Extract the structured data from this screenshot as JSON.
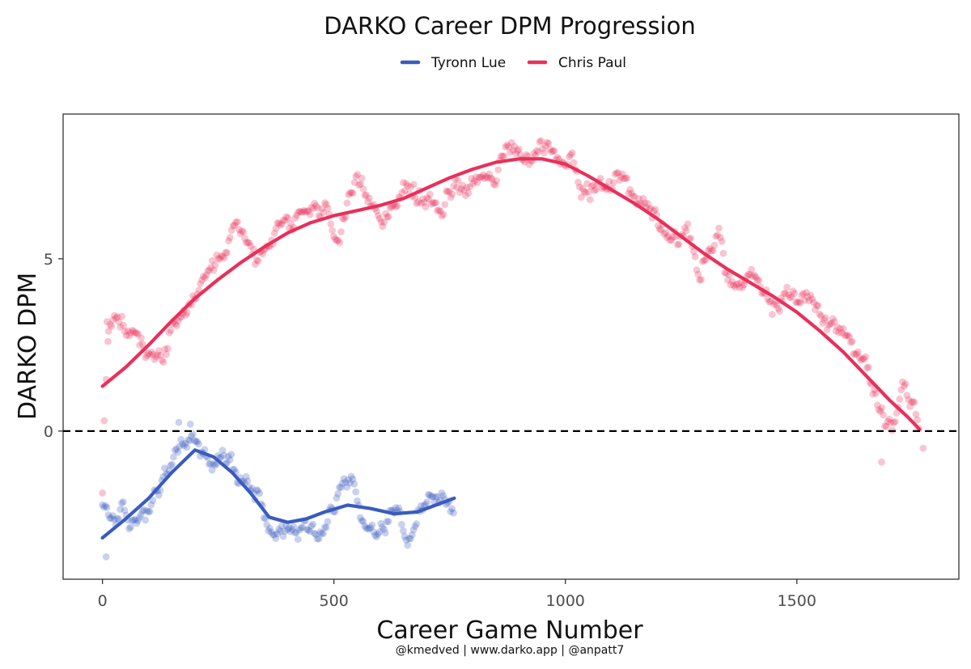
{
  "chart_data": {
    "type": "scatter",
    "title": "DARKO Career DPM Progression",
    "xlabel": "Career Game Number",
    "ylabel": "DARKO DPM",
    "caption": "@kmedved | www.darko.app | @anpatt7",
    "xlim": [
      -85,
      1850
    ],
    "ylim": [
      -4.3,
      9.2
    ],
    "xticks": [
      0,
      500,
      1000,
      1500
    ],
    "yticks": [
      0,
      5
    ],
    "reference_line": {
      "y": 0,
      "style": "dashed",
      "color": "#000000"
    },
    "grid": false,
    "legend_position": "top",
    "series": [
      {
        "name": "Tyronn Lue",
        "color": "#3A5BBF",
        "smooth": [
          [
            0,
            -3.1
          ],
          [
            50,
            -2.55
          ],
          [
            100,
            -1.95
          ],
          [
            150,
            -1.2
          ],
          [
            200,
            -0.55
          ],
          [
            240,
            -0.75
          ],
          [
            280,
            -1.2
          ],
          [
            320,
            -1.8
          ],
          [
            360,
            -2.5
          ],
          [
            400,
            -2.65
          ],
          [
            440,
            -2.55
          ],
          [
            480,
            -2.35
          ],
          [
            530,
            -2.15
          ],
          [
            580,
            -2.25
          ],
          [
            630,
            -2.4
          ],
          [
            680,
            -2.35
          ],
          [
            760,
            -1.95
          ]
        ],
        "anchors": [
          [
            0,
            -2.3
          ],
          [
            20,
            -2.5
          ],
          [
            40,
            -2.35
          ],
          [
            60,
            -2.9
          ],
          [
            80,
            -2.5
          ],
          [
            100,
            -2.1
          ],
          [
            120,
            -1.6
          ],
          [
            140,
            -1.3
          ],
          [
            160,
            -0.6
          ],
          [
            180,
            -0.35
          ],
          [
            200,
            -0.2
          ],
          [
            220,
            -0.7
          ],
          [
            240,
            -0.8
          ],
          [
            260,
            -0.7
          ],
          [
            280,
            -1.0
          ],
          [
            300,
            -1.4
          ],
          [
            320,
            -1.35
          ],
          [
            340,
            -1.8
          ],
          [
            360,
            -2.6
          ],
          [
            380,
            -2.7
          ],
          [
            400,
            -2.85
          ],
          [
            420,
            -3.0
          ],
          [
            440,
            -2.5
          ],
          [
            460,
            -2.7
          ],
          [
            480,
            -2.55
          ],
          [
            500,
            -2.2
          ],
          [
            520,
            -1.3
          ],
          [
            540,
            -1.6
          ],
          [
            560,
            -2.5
          ],
          [
            580,
            -2.8
          ],
          [
            600,
            -2.65
          ],
          [
            620,
            -2.55
          ],
          [
            640,
            -2.2
          ],
          [
            660,
            -2.85
          ],
          [
            680,
            -2.45
          ],
          [
            700,
            -1.85
          ],
          [
            720,
            -2.2
          ],
          [
            740,
            -1.95
          ],
          [
            760,
            -2.2
          ]
        ],
        "outliers": [
          [
            8,
            -3.65
          ],
          [
            165,
            0.25
          ],
          [
            190,
            0.2
          ]
        ]
      },
      {
        "name": "Chris Paul",
        "color": "#E8305A",
        "smooth": [
          [
            0,
            1.3
          ],
          [
            50,
            1.85
          ],
          [
            100,
            2.5
          ],
          [
            150,
            3.2
          ],
          [
            200,
            3.85
          ],
          [
            250,
            4.4
          ],
          [
            300,
            4.9
          ],
          [
            350,
            5.35
          ],
          [
            400,
            5.75
          ],
          [
            450,
            6.05
          ],
          [
            500,
            6.25
          ],
          [
            550,
            6.4
          ],
          [
            600,
            6.55
          ],
          [
            650,
            6.75
          ],
          [
            700,
            7.05
          ],
          [
            750,
            7.35
          ],
          [
            800,
            7.6
          ],
          [
            850,
            7.8
          ],
          [
            900,
            7.9
          ],
          [
            950,
            7.9
          ],
          [
            1000,
            7.75
          ],
          [
            1050,
            7.4
          ],
          [
            1100,
            7.0
          ],
          [
            1150,
            6.6
          ],
          [
            1200,
            6.15
          ],
          [
            1250,
            5.65
          ],
          [
            1300,
            5.15
          ],
          [
            1350,
            4.7
          ],
          [
            1400,
            4.3
          ],
          [
            1450,
            3.9
          ],
          [
            1500,
            3.45
          ],
          [
            1550,
            2.9
          ],
          [
            1600,
            2.3
          ],
          [
            1650,
            1.6
          ],
          [
            1700,
            0.9
          ],
          [
            1740,
            0.4
          ],
          [
            1765,
            0.05
          ]
        ],
        "anchors": [
          [
            10,
            2.9
          ],
          [
            30,
            3.0
          ],
          [
            50,
            2.8
          ],
          [
            70,
            2.8
          ],
          [
            90,
            2.4
          ],
          [
            110,
            2.05
          ],
          [
            130,
            2.3
          ],
          [
            150,
            2.8
          ],
          [
            170,
            3.0
          ],
          [
            190,
            3.7
          ],
          [
            210,
            4.1
          ],
          [
            230,
            4.2
          ],
          [
            250,
            4.5
          ],
          [
            270,
            5.0
          ],
          [
            290,
            5.9
          ],
          [
            310,
            5.5
          ],
          [
            330,
            5.0
          ],
          [
            350,
            5.5
          ],
          [
            370,
            5.8
          ],
          [
            390,
            5.9
          ],
          [
            410,
            5.6
          ],
          [
            430,
            6.2
          ],
          [
            450,
            6.4
          ],
          [
            470,
            6.2
          ],
          [
            490,
            6.3
          ],
          [
            510,
            5.6
          ],
          [
            530,
            6.3
          ],
          [
            550,
            6.8
          ],
          [
            570,
            6.6
          ],
          [
            590,
            6.5
          ],
          [
            610,
            6.5
          ],
          [
            630,
            6.9
          ],
          [
            650,
            7.1
          ],
          [
            670,
            6.8
          ],
          [
            690,
            6.7
          ],
          [
            710,
            6.6
          ],
          [
            730,
            6.6
          ],
          [
            750,
            6.9
          ],
          [
            770,
            7.2
          ],
          [
            790,
            7.3
          ],
          [
            810,
            7.4
          ],
          [
            830,
            7.7
          ],
          [
            850,
            7.6
          ],
          [
            870,
            8.0
          ],
          [
            890,
            7.9
          ],
          [
            910,
            7.9
          ],
          [
            930,
            8.0
          ],
          [
            950,
            8.1
          ],
          [
            970,
            8.2
          ],
          [
            990,
            7.9
          ],
          [
            1010,
            8.1
          ],
          [
            1030,
            7.4
          ],
          [
            1050,
            7.2
          ],
          [
            1070,
            6.9
          ],
          [
            1090,
            6.9
          ],
          [
            1110,
            7.5
          ],
          [
            1130,
            7.3
          ],
          [
            1150,
            6.7
          ],
          [
            1170,
            6.6
          ],
          [
            1190,
            6.4
          ],
          [
            1210,
            6.2
          ],
          [
            1230,
            5.9
          ],
          [
            1250,
            5.8
          ],
          [
            1270,
            5.5
          ],
          [
            1290,
            4.6
          ],
          [
            1310,
            5.2
          ],
          [
            1330,
            5.9
          ],
          [
            1350,
            4.4
          ],
          [
            1370,
            4.2
          ],
          [
            1390,
            4.2
          ],
          [
            1410,
            4.4
          ],
          [
            1430,
            3.6
          ],
          [
            1450,
            3.6
          ],
          [
            1470,
            3.9
          ],
          [
            1490,
            4.0
          ],
          [
            1510,
            3.9
          ],
          [
            1530,
            3.8
          ],
          [
            1550,
            3.2
          ],
          [
            1570,
            3.2
          ],
          [
            1590,
            3.0
          ],
          [
            1610,
            2.8
          ],
          [
            1630,
            2.1
          ],
          [
            1650,
            1.8
          ],
          [
            1670,
            1.0
          ],
          [
            1690,
            0.3
          ],
          [
            1710,
            0.5
          ],
          [
            1730,
            1.4
          ],
          [
            1750,
            0.9
          ],
          [
            1765,
            0.0
          ]
        ],
        "outliers": [
          [
            0,
            -1.8
          ],
          [
            4,
            0.3
          ],
          [
            8,
            1.5
          ],
          [
            12,
            2.6
          ],
          [
            1088,
            7.1
          ],
          [
            1683,
            -0.9
          ],
          [
            1773,
            -0.5
          ]
        ]
      }
    ]
  }
}
